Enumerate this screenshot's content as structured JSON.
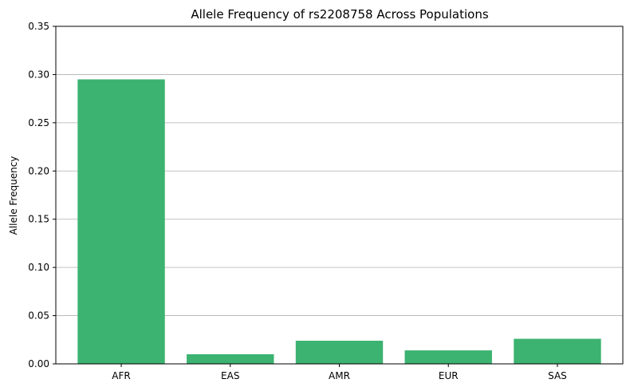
{
  "chart_data": {
    "type": "bar",
    "title": "Allele Frequency of rs2208758 Across Populations",
    "xlabel": "",
    "ylabel": "Allele Frequency",
    "categories": [
      "AFR",
      "EAS",
      "AMR",
      "EUR",
      "SAS"
    ],
    "values": [
      0.295,
      0.01,
      0.024,
      0.014,
      0.026
    ],
    "ylim": [
      0,
      0.35
    ],
    "yticks": [
      "0.00",
      "0.05",
      "0.10",
      "0.15",
      "0.20",
      "0.25",
      "0.30",
      "0.35"
    ],
    "grid": "y",
    "bar_color": "#3cb371",
    "grid_color": "#b0b0b0"
  }
}
